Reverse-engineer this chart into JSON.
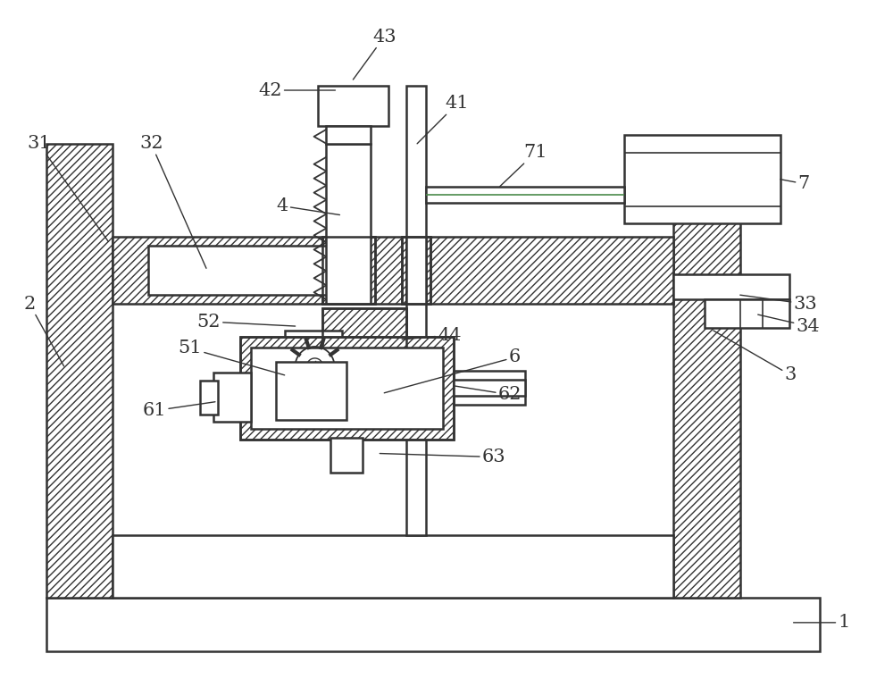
{
  "bg_color": "#ffffff",
  "line_color": "#333333",
  "figsize": [
    10.0,
    7.6
  ],
  "dpi": 100,
  "label_fontsize": 14
}
